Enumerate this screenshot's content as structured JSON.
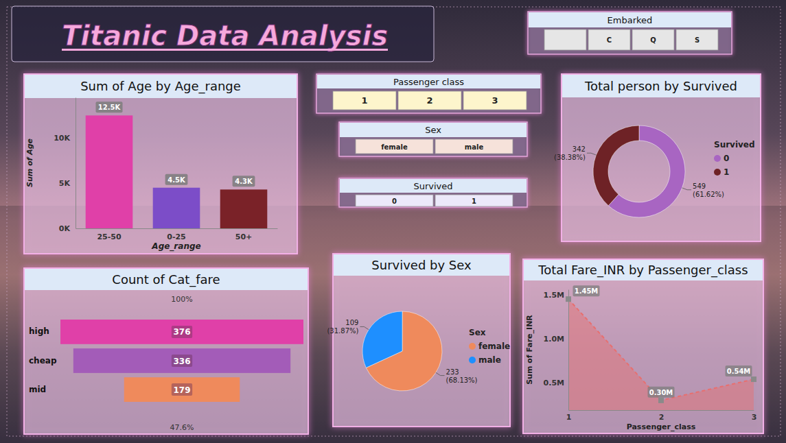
{
  "title": "Titanic Data Analysis",
  "slicers": [
    {
      "title": "Embarked",
      "options": [
        null,
        "C",
        "Q",
        "S"
      ]
    },
    {
      "title": "Passenger class",
      "options": [
        "1",
        "2",
        "3"
      ]
    },
    {
      "title": "Sex",
      "options": [
        "female",
        "male"
      ]
    },
    {
      "title": "Survived",
      "options": [
        "0",
        "1"
      ]
    }
  ],
  "chart_data": [
    {
      "type": "bar",
      "title": "Sum of Age by Age_range",
      "categories": [
        "25-50",
        "0-25",
        "50+"
      ],
      "values": [
        12500,
        4500,
        4300
      ],
      "value_labels": [
        "12.5K",
        "4.5K",
        "4.3K"
      ],
      "colors": [
        "#e040a8",
        "#7c4dc8",
        "#7a2228"
      ],
      "x_label": "Age_range",
      "y_label": "Sum of Age",
      "ylim": [
        0,
        14500
      ],
      "yticks": [
        {
          "value": 0,
          "label": "0K"
        },
        {
          "value": 5000,
          "label": "5K"
        },
        {
          "value": 10000,
          "label": "10K"
        }
      ],
      "grid": false,
      "data_labels": true
    },
    {
      "type": "donut",
      "title": "Total person by Survived",
      "categories": [
        "0",
        "1"
      ],
      "values": [
        549,
        342
      ],
      "value_labels": [
        "549 (61.62%)",
        "342 (38.38%)"
      ],
      "colors": [
        "#a865c2",
        "#6e2226"
      ],
      "legend_title": "Survived",
      "legend": "right",
      "data_labels": true
    },
    {
      "type": "funnel",
      "title": "Count of Cat_fare",
      "categories": [
        "high",
        "cheap",
        "mid"
      ],
      "values": [
        376,
        336,
        179
      ],
      "colors": [
        "#e040a8",
        "#a35cb8",
        "#ef8a5c"
      ],
      "annotations": [
        "100%",
        "47.6%"
      ],
      "data_labels": true
    },
    {
      "type": "pie",
      "title": "Survived by Sex",
      "categories": [
        "female",
        "male"
      ],
      "values": [
        233,
        109
      ],
      "value_labels": [
        "233 (68.13%)",
        "109 (31.87%)"
      ],
      "colors": [
        "#ef8a5c",
        "#1e8fff"
      ],
      "legend_title": "Sex",
      "legend": "right",
      "data_labels": true
    },
    {
      "type": "area",
      "title": "Total Fare_INR by Passenger_class",
      "x": [
        1,
        2,
        3
      ],
      "values": [
        1450000,
        300000,
        540000
      ],
      "value_labels": [
        "1.45M",
        "0.30M",
        "0.54M"
      ],
      "color": "#e86f6f",
      "line_style": "dashed",
      "marker": "square",
      "x_label": "Passenger_class",
      "y_label": "Sum of Fare_INR",
      "xlim": [
        1,
        3
      ],
      "xticks": [
        1,
        2,
        3
      ],
      "ylim": [
        190000,
        1560000
      ],
      "yticks": [
        {
          "value": 500000,
          "label": "0.5M"
        },
        {
          "value": 1000000,
          "label": "1.0M"
        },
        {
          "value": 1500000,
          "label": "1.5M"
        }
      ],
      "grid": false,
      "data_labels": true
    }
  ]
}
